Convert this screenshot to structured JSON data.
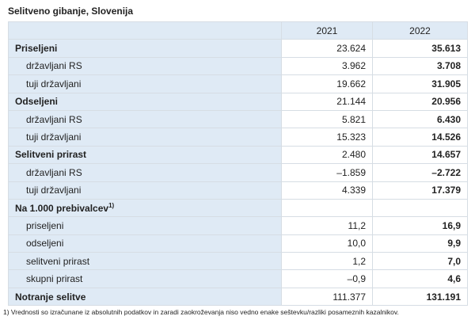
{
  "title": "Selitveno gibanje, Slovenija",
  "table": {
    "header": [
      "2021",
      "2022"
    ],
    "rows": [
      {
        "label": "Priseljeni",
        "values": [
          "23.624",
          "35.613"
        ]
      },
      {
        "label": "državljani RS",
        "values": [
          "3.962",
          "3.708"
        ]
      },
      {
        "label": "tuji državljani",
        "values": [
          "19.662",
          "31.905"
        ]
      },
      {
        "label": "Odseljeni",
        "values": [
          "21.144",
          "20.956"
        ]
      },
      {
        "label": "državljani RS",
        "values": [
          "5.821",
          "6.430"
        ]
      },
      {
        "label": "tuji državljani",
        "values": [
          "15.323",
          "14.526"
        ]
      },
      {
        "label": "Selitveni prirast",
        "values": [
          "2.480",
          "14.657"
        ]
      },
      {
        "label": "državljani RS",
        "values": [
          "–1.859",
          "–2.722"
        ]
      },
      {
        "label": "tuji državljani",
        "values": [
          "4.339",
          "17.379"
        ]
      },
      {
        "label": "Na 1.000 prebivalcev",
        "note": "1)"
      },
      {
        "label": "priseljeni",
        "values": [
          "11,2",
          "16,9"
        ]
      },
      {
        "label": "odseljeni",
        "values": [
          "10,0",
          "9,9"
        ]
      },
      {
        "label": "selitveni prirast",
        "values": [
          "1,2",
          "7,0"
        ]
      },
      {
        "label": "skupni prirast",
        "values": [
          "–0,9",
          "4,6"
        ]
      },
      {
        "label": "Notranje selitve",
        "values": [
          "111.377",
          "131.191"
        ]
      }
    ]
  },
  "footnote": "1) Vrednosti so izračunane iz absolutnih podatkov in zaradi zaokroževanja niso vedno enake seštevku/razliki posameznih kazalnikov."
}
